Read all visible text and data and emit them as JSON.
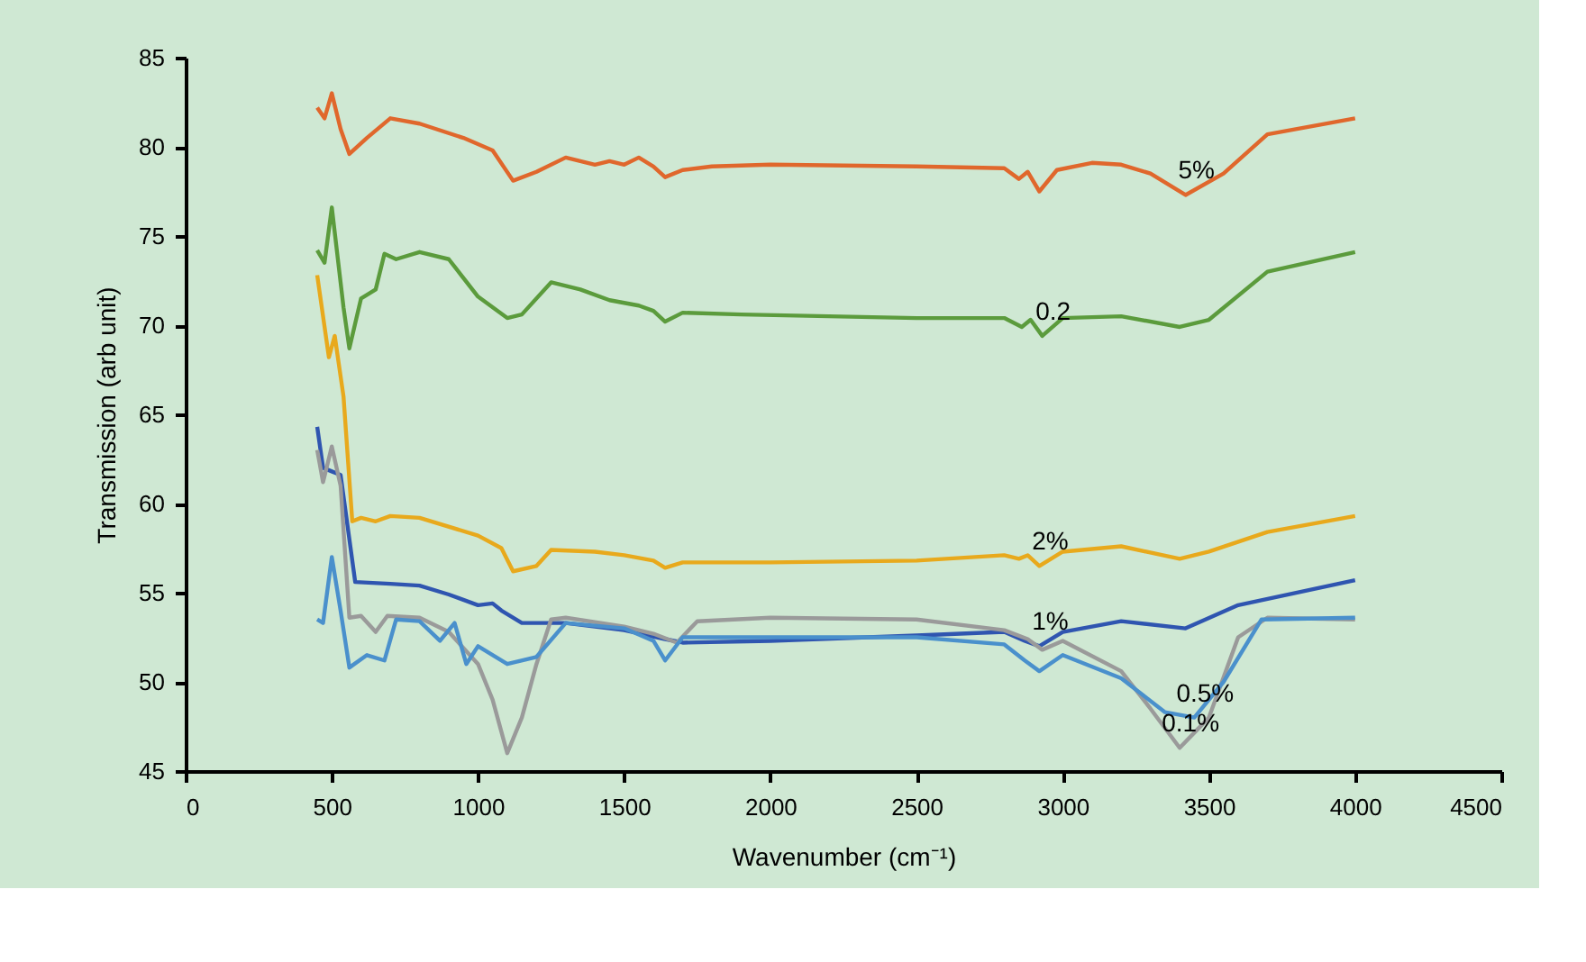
{
  "chart_data": {
    "type": "line",
    "xlabel": "Wavenumber (cm⁻¹)",
    "ylabel": "Transmission (arb unit)",
    "xlim": [
      0,
      4500
    ],
    "xticks": [
      0,
      500,
      {
        "value": 1000,
        "label": "1000"
      },
      {
        "value": 1500,
        "label": "1500"
      },
      {
        "value": 2000,
        "label": "2000"
      },
      {
        "value": 2500,
        "label": "2500"
      },
      {
        "value": 3000,
        "label": "3000"
      },
      {
        "value": 3500,
        "label": "3500"
      },
      {
        "value": 4000,
        "label": "4000"
      },
      {
        "value": 4500,
        "label": "4500"
      }
    ],
    "ylim": [
      45,
      85
    ],
    "yticks": [
      45,
      50,
      55,
      60,
      65,
      70,
      75,
      80,
      85
    ],
    "grid": false,
    "legend": false,
    "marker": "none",
    "line_style": "solid",
    "series": [
      {
        "name": "5%",
        "color": "#e0672c",
        "x": [
          450,
          475,
          500,
          530,
          560,
          620,
          700,
          800,
          950,
          1050,
          1120,
          1200,
          1300,
          1400,
          1450,
          1500,
          1550,
          1600,
          1640,
          1700,
          1800,
          2000,
          2500,
          2800,
          2850,
          2880,
          2920,
          2980,
          3100,
          3200,
          3300,
          3420,
          3550,
          3700,
          4000
        ],
        "values": [
          82.2,
          81.6,
          83.0,
          81.0,
          79.6,
          80.5,
          81.6,
          81.3,
          80.5,
          79.8,
          78.1,
          78.6,
          79.4,
          79.0,
          79.2,
          79.0,
          79.4,
          78.9,
          78.3,
          78.7,
          78.9,
          79.0,
          78.9,
          78.8,
          78.2,
          78.6,
          77.5,
          78.7,
          79.1,
          79.0,
          78.5,
          77.3,
          78.5,
          80.7,
          81.6
        ]
      },
      {
        "name": "0.2",
        "color": "#5b9b3c",
        "x": [
          450,
          475,
          500,
          540,
          560,
          600,
          650,
          680,
          720,
          800,
          900,
          1000,
          1100,
          1150,
          1250,
          1350,
          1450,
          1550,
          1600,
          1640,
          1700,
          1900,
          2500,
          2800,
          2860,
          2890,
          2930,
          3000,
          3200,
          3400,
          3500,
          3700,
          4000
        ],
        "values": [
          74.2,
          73.5,
          76.6,
          71.0,
          68.7,
          71.5,
          72.0,
          74.0,
          73.7,
          74.1,
          73.7,
          71.6,
          70.4,
          70.6,
          72.4,
          72.0,
          71.4,
          71.1,
          70.8,
          70.2,
          70.7,
          70.6,
          70.4,
          70.4,
          69.9,
          70.3,
          69.4,
          70.4,
          70.5,
          69.9,
          70.3,
          73.0,
          74.1
        ]
      },
      {
        "name": "2%",
        "color": "#e8a91c",
        "x": [
          450,
          490,
          510,
          540,
          570,
          600,
          650,
          700,
          800,
          1000,
          1080,
          1120,
          1200,
          1250,
          1400,
          1500,
          1600,
          1640,
          1700,
          2000,
          2500,
          2800,
          2850,
          2880,
          2920,
          3000,
          3200,
          3400,
          3500,
          3700,
          4000
        ],
        "values": [
          72.8,
          68.2,
          69.4,
          66.0,
          59.0,
          59.2,
          59.0,
          59.3,
          59.2,
          58.2,
          57.5,
          56.2,
          56.5,
          57.4,
          57.3,
          57.1,
          56.8,
          56.4,
          56.7,
          56.7,
          56.8,
          57.1,
          56.9,
          57.1,
          56.5,
          57.3,
          57.6,
          56.9,
          57.3,
          58.4,
          59.3
        ]
      },
      {
        "name": "1%",
        "color": "#2f55b0",
        "x": [
          450,
          470,
          500,
          530,
          580,
          700,
          800,
          900,
          1000,
          1050,
          1080,
          1150,
          1300,
          1500,
          1640,
          1700,
          2000,
          2500,
          2800,
          2870,
          2920,
          3000,
          3200,
          3420,
          3600,
          4000
        ],
        "values": [
          64.3,
          62.0,
          61.8,
          61.6,
          55.6,
          55.5,
          55.4,
          54.9,
          54.3,
          54.4,
          54.0,
          53.3,
          53.3,
          52.9,
          52.4,
          52.2,
          52.3,
          52.6,
          52.8,
          52.3,
          52.0,
          52.8,
          53.4,
          53.0,
          54.3,
          55.7
        ]
      },
      {
        "name": "0.1%",
        "color": "#9a9a9a",
        "x": [
          450,
          470,
          500,
          530,
          560,
          600,
          650,
          690,
          800,
          900,
          1000,
          1050,
          1100,
          1150,
          1200,
          1250,
          1300,
          1500,
          1600,
          1680,
          1750,
          2000,
          2500,
          2800,
          2880,
          2930,
          3000,
          3200,
          3300,
          3400,
          3500,
          3600,
          3700,
          4000
        ],
        "values": [
          63.0,
          61.2,
          63.2,
          61.0,
          53.6,
          53.7,
          52.8,
          53.7,
          53.6,
          52.8,
          51.0,
          49.0,
          46.0,
          48.0,
          51.0,
          53.5,
          53.6,
          53.1,
          52.7,
          52.2,
          53.4,
          53.6,
          53.5,
          52.9,
          52.4,
          51.8,
          52.3,
          50.6,
          48.5,
          46.3,
          48.0,
          52.5,
          53.6,
          53.5
        ]
      },
      {
        "name": "0.5%",
        "color": "#4a90cc",
        "x": [
          450,
          470,
          500,
          530,
          560,
          620,
          680,
          720,
          800,
          870,
          920,
          960,
          1000,
          1100,
          1200,
          1300,
          1500,
          1600,
          1640,
          1700,
          2000,
          2500,
          2800,
          2870,
          2920,
          3000,
          3200,
          3350,
          3450,
          3550,
          3680,
          4000
        ],
        "values": [
          53.5,
          53.3,
          57.0,
          54.0,
          50.8,
          51.5,
          51.2,
          53.5,
          53.4,
          52.3,
          53.3,
          51.0,
          52.0,
          51.0,
          51.4,
          53.3,
          53.0,
          52.3,
          51.2,
          52.5,
          52.5,
          52.5,
          52.1,
          51.2,
          50.6,
          51.5,
          50.2,
          48.3,
          48.0,
          50.0,
          53.5,
          53.6
        ]
      }
    ]
  }
}
